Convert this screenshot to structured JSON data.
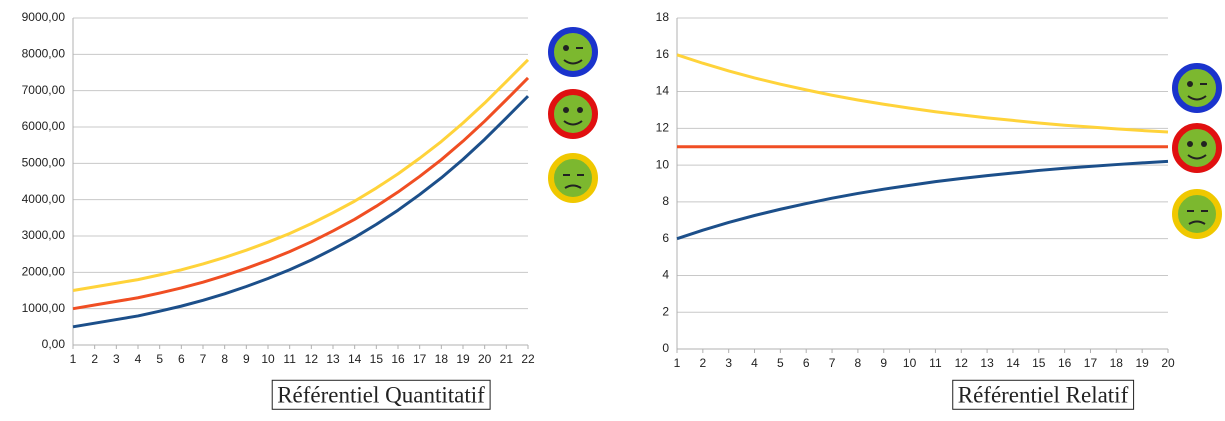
{
  "chart_data": [
    {
      "type": "line",
      "caption": "Référentiel Quantitatif",
      "x": [
        1,
        2,
        3,
        4,
        5,
        6,
        7,
        8,
        9,
        10,
        11,
        12,
        13,
        14,
        15,
        16,
        17,
        18,
        19,
        20,
        21,
        22
      ],
      "xlim": [
        1,
        22
      ],
      "xticks": [
        1,
        2,
        3,
        4,
        5,
        6,
        7,
        8,
        9,
        10,
        11,
        12,
        13,
        14,
        15,
        16,
        17,
        18,
        19,
        20,
        21,
        22
      ],
      "ylim": [
        0,
        9000
      ],
      "yticks": [
        {
          "value": 0,
          "label": "0,00"
        },
        {
          "value": 1000,
          "label": "1000,00"
        },
        {
          "value": 2000,
          "label": "2000,00"
        },
        {
          "value": 3000,
          "label": "3000,00"
        },
        {
          "value": 4000,
          "label": "4000,00"
        },
        {
          "value": 5000,
          "label": "5000,00"
        },
        {
          "value": 6000,
          "label": "6000,00"
        },
        {
          "value": 7000,
          "label": "7000,00"
        },
        {
          "value": 8000,
          "label": "8000,00"
        },
        {
          "value": 9000,
          "label": "9000,00"
        }
      ],
      "grid": true,
      "series": [
        {
          "color": "#1c4f8a",
          "values": [
            500,
            600,
            700,
            800,
            930,
            1070,
            1230,
            1410,
            1610,
            1830,
            2070,
            2340,
            2640,
            2960,
            3320,
            3710,
            4140,
            4600,
            5110,
            5660,
            6250,
            6850
          ]
        },
        {
          "color": "#f04e23",
          "values": [
            1000,
            1100,
            1200,
            1300,
            1430,
            1570,
            1730,
            1910,
            2110,
            2330,
            2570,
            2840,
            3140,
            3460,
            3820,
            4210,
            4640,
            5100,
            5610,
            6160,
            6750,
            7350
          ]
        },
        {
          "color": "#ffd33a",
          "values": [
            1500,
            1600,
            1700,
            1800,
            1930,
            2070,
            2230,
            2410,
            2610,
            2830,
            3070,
            3340,
            3640,
            3960,
            4320,
            4710,
            5140,
            5600,
            6110,
            6660,
            7250,
            7850
          ]
        }
      ]
    },
    {
      "type": "line",
      "caption": "Référentiel Relatif",
      "x": [
        1,
        2,
        3,
        4,
        5,
        6,
        7,
        8,
        9,
        10,
        11,
        12,
        13,
        14,
        15,
        16,
        17,
        18,
        19,
        20
      ],
      "xlim": [
        1,
        20
      ],
      "xticks": [
        1,
        2,
        3,
        4,
        5,
        6,
        7,
        8,
        9,
        10,
        11,
        12,
        13,
        14,
        15,
        16,
        17,
        18,
        19,
        20
      ],
      "ylim": [
        0,
        18
      ],
      "yticks": [
        0,
        2,
        4,
        6,
        8,
        10,
        12,
        14,
        16,
        18
      ],
      "grid": true,
      "series": [
        {
          "color": "#ffd33a",
          "values": [
            16,
            15.54,
            15.12,
            14.74,
            14.4,
            14.09,
            13.8,
            13.54,
            13.31,
            13.1,
            12.9,
            12.73,
            12.57,
            12.43,
            12.29,
            12.17,
            12.07,
            11.97,
            11.88,
            11.8
          ]
        },
        {
          "color": "#f04e23",
          "values": [
            11,
            11,
            11,
            11,
            11,
            11,
            11,
            11,
            11,
            11,
            11,
            11,
            11,
            11,
            11,
            11,
            11,
            11,
            11,
            11
          ]
        },
        {
          "color": "#1c4f8a",
          "values": [
            6,
            6.46,
            6.88,
            7.26,
            7.6,
            7.91,
            8.2,
            8.46,
            8.69,
            8.9,
            9.1,
            9.27,
            9.43,
            9.57,
            9.71,
            9.83,
            9.93,
            10.03,
            10.12,
            10.2
          ]
        }
      ]
    }
  ]
}
